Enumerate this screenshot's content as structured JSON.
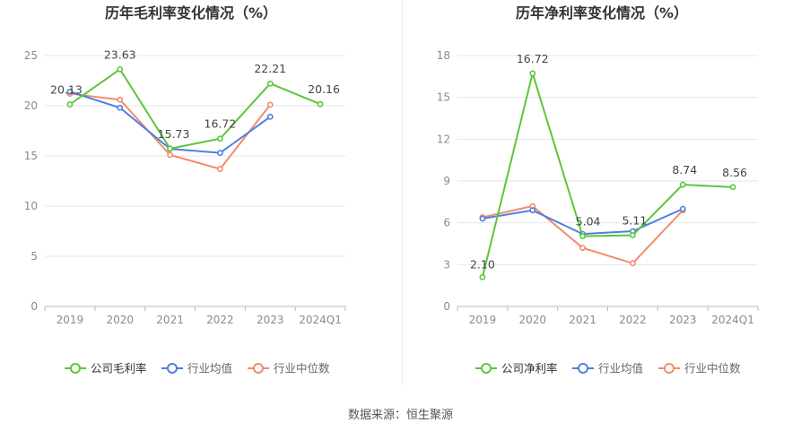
{
  "footer": {
    "source": "数据来源：恒生聚源"
  },
  "colors": {
    "company": "#5cc63a",
    "average": "#4f7fe0",
    "median": "#f28c6a",
    "grid": "#e6e6ee",
    "axis": "#8a8a8a"
  },
  "chart_data": [
    {
      "type": "line",
      "title": "历年毛利率变化情况（%）",
      "categories": [
        "2019",
        "2020",
        "2021",
        "2022",
        "2023",
        "2024Q1"
      ],
      "ylim": [
        0,
        25
      ],
      "yticks": [
        0,
        5,
        10,
        15,
        20,
        25
      ],
      "grid": true,
      "legend_position": "bottom",
      "series": [
        {
          "name": "公司毛利率",
          "values": [
            20.13,
            23.63,
            15.73,
            16.72,
            22.21,
            20.16
          ],
          "labels": [
            "20.13",
            "23.63",
            "15.73",
            "16.72",
            "22.21",
            "20.16"
          ]
        },
        {
          "name": "行业均值",
          "values": [
            21.4,
            19.8,
            15.7,
            15.3,
            18.9,
            null
          ]
        },
        {
          "name": "行业中位数",
          "values": [
            21.2,
            20.6,
            15.1,
            13.7,
            20.1,
            null
          ]
        }
      ]
    },
    {
      "type": "line",
      "title": "历年净利率变化情况（%）",
      "categories": [
        "2019",
        "2020",
        "2021",
        "2022",
        "2023",
        "2024Q1"
      ],
      "ylim": [
        0,
        18
      ],
      "yticks": [
        0,
        3,
        6,
        9,
        12,
        15,
        18
      ],
      "grid": true,
      "legend_position": "bottom",
      "series": [
        {
          "name": "公司净利率",
          "values": [
            2.1,
            16.72,
            5.04,
            5.11,
            8.74,
            8.56
          ],
          "labels": [
            "2.10",
            "16.72",
            "5.04",
            "5.11",
            "8.74",
            "8.56"
          ]
        },
        {
          "name": "行业均值",
          "values": [
            6.3,
            6.9,
            5.2,
            5.4,
            7.0,
            null
          ]
        },
        {
          "name": "行业中位数",
          "values": [
            6.4,
            7.2,
            4.2,
            3.1,
            6.9,
            null
          ]
        }
      ]
    }
  ]
}
